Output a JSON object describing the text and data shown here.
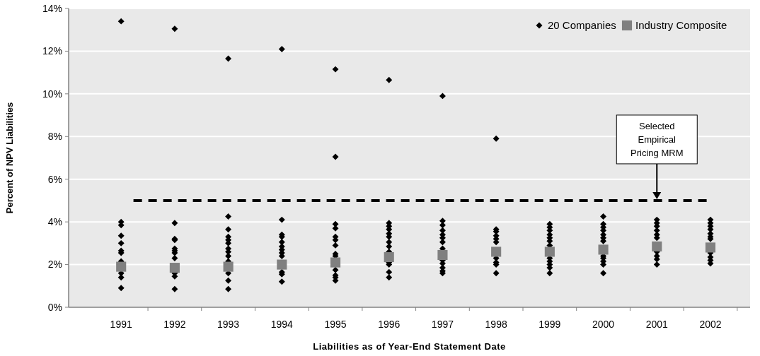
{
  "chart_data": {
    "type": "scatter",
    "xlabel": "Liabilities as of Year-End Statement Date",
    "ylabel": "Percent of NPV Liabilities",
    "xlim": [
      1990.02,
      2002.74
    ],
    "xticks": [
      1991,
      1992,
      1993,
      1994,
      1995,
      1996,
      1997,
      1998,
      1999,
      2000,
      2001,
      2002
    ],
    "ylim": [
      0,
      14
    ],
    "yticks": [
      {
        "value": 0,
        "label": "0%"
      },
      {
        "value": 2,
        "label": "2%"
      },
      {
        "value": 4,
        "label": "4%"
      },
      {
        "value": 6,
        "label": "6%"
      },
      {
        "value": 8,
        "label": "8%"
      },
      {
        "value": 10,
        "label": "10%"
      },
      {
        "value": 12,
        "label": "12%"
      },
      {
        "value": 14,
        "label": "14%"
      }
    ],
    "grid": "y",
    "legend": "top right",
    "series": [
      {
        "name": "20 Companies",
        "color": "#000000",
        "marker": "diamond",
        "x": [
          1991,
          1991,
          1991,
          1991,
          1991,
          1991,
          1991,
          1991,
          1991,
          1991,
          1991,
          1992,
          1992,
          1992,
          1992,
          1992,
          1992,
          1992,
          1992,
          1992,
          1992,
          1992,
          1993,
          1993,
          1993,
          1993,
          1993,
          1993,
          1993,
          1993,
          1993,
          1993,
          1993,
          1993,
          1993,
          1994,
          1994,
          1994,
          1994,
          1994,
          1994,
          1994,
          1994,
          1994,
          1994,
          1994,
          1994,
          1995,
          1995,
          1995,
          1995,
          1995,
          1995,
          1995,
          1995,
          1995,
          1995,
          1995,
          1995,
          1995,
          1996,
          1996,
          1996,
          1996,
          1996,
          1996,
          1996,
          1996,
          1996,
          1996,
          1996,
          1996,
          1996,
          1997,
          1997,
          1997,
          1997,
          1997,
          1997,
          1997,
          1997,
          1997,
          1997,
          1997,
          1997,
          1997,
          1998,
          1998,
          1998,
          1998,
          1998,
          1998,
          1998,
          1998,
          1998,
          1998,
          1999,
          1999,
          1999,
          1999,
          1999,
          1999,
          1999,
          1999,
          1999,
          1999,
          1999,
          1999,
          2000,
          2000,
          2000,
          2000,
          2000,
          2000,
          2000,
          2000,
          2000,
          2000,
          2000,
          2000,
          2001,
          2001,
          2001,
          2001,
          2001,
          2001,
          2001,
          2001,
          2001,
          2001,
          2002,
          2002,
          2002,
          2002,
          2002,
          2002,
          2002,
          2002,
          2002,
          2002,
          2002
        ],
        "values": [
          13.4,
          4.0,
          3.85,
          3.35,
          3.0,
          2.65,
          2.55,
          2.15,
          1.6,
          1.4,
          0.9,
          13.05,
          3.95,
          3.2,
          3.15,
          2.75,
          2.65,
          2.55,
          2.3,
          1.6,
          1.45,
          0.85,
          11.65,
          4.25,
          3.65,
          3.3,
          3.15,
          3.0,
          2.75,
          2.6,
          2.4,
          2.15,
          1.6,
          1.25,
          0.85,
          12.1,
          4.1,
          3.4,
          3.3,
          3.05,
          2.85,
          2.7,
          2.55,
          2.4,
          1.65,
          1.55,
          1.2,
          11.15,
          7.05,
          3.9,
          3.7,
          3.3,
          3.15,
          2.9,
          2.5,
          2.4,
          1.75,
          1.5,
          1.4,
          1.25,
          10.65,
          3.95,
          3.8,
          3.65,
          3.45,
          3.3,
          3.05,
          2.85,
          2.6,
          2.1,
          2.0,
          1.65,
          1.4,
          9.9,
          4.05,
          3.85,
          3.6,
          3.4,
          3.25,
          3.05,
          2.75,
          2.2,
          2.05,
          1.85,
          1.7,
          1.6,
          7.9,
          3.65,
          3.55,
          3.35,
          3.2,
          3.05,
          2.3,
          2.1,
          2.0,
          1.6,
          3.9,
          3.75,
          3.6,
          3.4,
          3.25,
          3.1,
          2.9,
          2.3,
          2.15,
          2.0,
          1.85,
          1.6,
          4.25,
          3.9,
          3.75,
          3.6,
          3.4,
          3.25,
          3.1,
          2.4,
          2.3,
          2.15,
          2.0,
          1.6,
          4.1,
          3.95,
          3.8,
          3.6,
          3.4,
          3.25,
          2.6,
          2.4,
          2.25,
          2.0,
          4.1,
          3.95,
          3.8,
          3.65,
          3.45,
          3.3,
          3.2,
          2.55,
          2.35,
          2.2,
          2.05
        ]
      },
      {
        "name": "Industry Composite",
        "color": "#808080",
        "marker": "square",
        "x": [
          1991,
          1992,
          1993,
          1994,
          1995,
          1996,
          1997,
          1998,
          1999,
          2000,
          2001,
          2002
        ],
        "values": [
          1.9,
          1.85,
          1.9,
          2.0,
          2.1,
          2.35,
          2.45,
          2.6,
          2.6,
          2.7,
          2.85,
          2.8
        ]
      }
    ],
    "ref_lines": [
      {
        "axis": "y",
        "value": 5,
        "color": "#000000",
        "line_style": "dashed"
      }
    ],
    "annotations": [
      "Selected Empirical Pricing MRM"
    ]
  }
}
